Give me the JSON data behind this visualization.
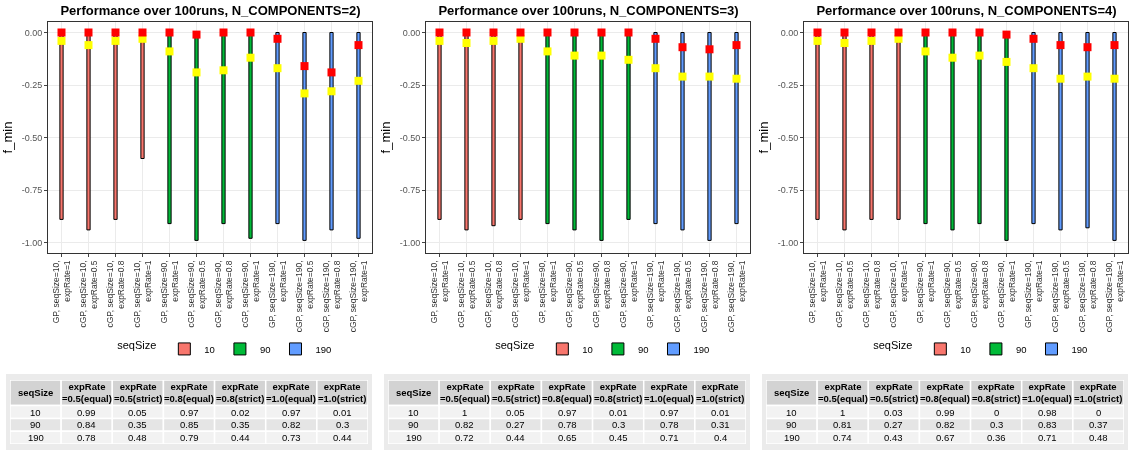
{
  "chart_data": [
    {
      "type": "bar",
      "title": "Performance over 100runs, N_COMPONENTS=2)",
      "ylabel": "f_min",
      "legend_title": "seqSize",
      "legend": "bottom",
      "grid": true,
      "ylim": [
        -1.05,
        0.05
      ],
      "yticks": [
        {
          "value": 0,
          "label": "0.00"
        },
        {
          "value": -0.25,
          "label": "-0.25"
        },
        {
          "value": -0.5,
          "label": "-0.50"
        },
        {
          "value": -0.75,
          "label": "-0.75"
        },
        {
          "value": -1,
          "label": "-1.00"
        }
      ],
      "categories": [
        "GP, seqSize=10, expRate=1",
        "cGP, seqSize=10, expRate=0.5",
        "cGP, seqSize=10, expRate=0.8",
        "cGP, seqSize=10, expRate=1",
        "GP, seqSize=90, expRate=1",
        "cGP, seqSize=90, expRate=0.5",
        "cGP, seqSize=90, expRate=0.8",
        "cGP, seqSize=90, expRate=1",
        "GP, seqSize=190, expRate=1",
        "cGP, seqSize=190, expRate=0.5",
        "cGP, seqSize=190, expRate=0.8",
        "cGP, seqSize=190, expRate=1"
      ],
      "series": [
        {
          "name": "10",
          "type": "bar",
          "color": "#f8766d",
          "values": [
            -0.89,
            -0.94,
            -0.89,
            -0.6,
            null,
            null,
            null,
            null,
            null,
            null,
            null,
            null
          ]
        },
        {
          "name": "90",
          "type": "bar",
          "color": "#00ba38",
          "values": [
            null,
            null,
            null,
            null,
            -0.91,
            -0.99,
            -0.91,
            -0.98,
            null,
            null,
            null,
            null
          ]
        },
        {
          "name": "190",
          "type": "bar",
          "color": "#619cff",
          "values": [
            null,
            null,
            null,
            null,
            null,
            null,
            null,
            null,
            -0.91,
            -0.99,
            -0.94,
            -0.98
          ]
        },
        {
          "type": "scatter",
          "marker": "square",
          "color": "#ffff00",
          "values": [
            -0.04,
            -0.06,
            -0.04,
            -0.03,
            -0.09,
            -0.19,
            -0.18,
            -0.12,
            -0.17,
            -0.29,
            -0.28,
            -0.23
          ]
        },
        {
          "type": "scatter",
          "marker": "square",
          "color": "#ff0000",
          "values": [
            0,
            0,
            0,
            0,
            0,
            -0.01,
            0,
            0,
            -0.03,
            -0.16,
            -0.19,
            -0.06
          ]
        }
      ]
    },
    {
      "type": "bar",
      "title": "Performance over 100runs, N_COMPONENTS=3)",
      "ylabel": "f_min",
      "legend_title": "seqSize",
      "legend": "bottom",
      "grid": true,
      "ylim": [
        -1.05,
        0.05
      ],
      "yticks": [
        {
          "value": 0,
          "label": "0.00"
        },
        {
          "value": -0.25,
          "label": "-0.25"
        },
        {
          "value": -0.5,
          "label": "-0.50"
        },
        {
          "value": -0.75,
          "label": "-0.75"
        },
        {
          "value": -1,
          "label": "-1.00"
        }
      ],
      "categories": [
        "GP, seqSize=10, expRate=1",
        "cGP, seqSize=10, expRate=0.5",
        "cGP, seqSize=10, expRate=0.8",
        "cGP, seqSize=10, expRate=1",
        "GP, seqSize=90, expRate=1",
        "cGP, seqSize=90, expRate=0.5",
        "cGP, seqSize=90, expRate=0.8",
        "cGP, seqSize=90, expRate=1",
        "GP, seqSize=190, expRate=1",
        "cGP, seqSize=190, expRate=0.5",
        "cGP, seqSize=190, expRate=0.8",
        "cGP, seqSize=190, expRate=1"
      ],
      "series": [
        {
          "name": "10",
          "type": "bar",
          "color": "#f8766d",
          "values": [
            -0.89,
            -0.94,
            -0.92,
            -0.89,
            null,
            null,
            null,
            null,
            null,
            null,
            null,
            null
          ]
        },
        {
          "name": "90",
          "type": "bar",
          "color": "#00ba38",
          "values": [
            null,
            null,
            null,
            null,
            -0.91,
            -0.94,
            -0.99,
            -0.89,
            null,
            null,
            null,
            null
          ]
        },
        {
          "name": "190",
          "type": "bar",
          "color": "#619cff",
          "values": [
            null,
            null,
            null,
            null,
            null,
            null,
            null,
            null,
            -0.91,
            -0.94,
            -0.99,
            -0.91
          ]
        },
        {
          "type": "scatter",
          "marker": "square",
          "color": "#ffff00",
          "values": [
            -0.04,
            -0.05,
            -0.04,
            -0.03,
            -0.09,
            -0.11,
            -0.11,
            -0.13,
            -0.17,
            -0.21,
            -0.21,
            -0.22
          ]
        },
        {
          "type": "scatter",
          "marker": "square",
          "color": "#ff0000",
          "values": [
            0,
            0,
            0,
            0,
            0,
            0,
            0,
            0,
            -0.03,
            -0.07,
            -0.08,
            -0.06
          ]
        }
      ]
    },
    {
      "type": "bar",
      "title": "Performance over 100runs, N_COMPONENTS=4)",
      "ylabel": "f_min",
      "legend_title": "seqSize",
      "legend": "bottom",
      "grid": true,
      "ylim": [
        -1.05,
        0.05
      ],
      "yticks": [
        {
          "value": 0,
          "label": "0.00"
        },
        {
          "value": -0.25,
          "label": "-0.25"
        },
        {
          "value": -0.5,
          "label": "-0.50"
        },
        {
          "value": -0.75,
          "label": "-0.75"
        },
        {
          "value": -1,
          "label": "-1.00"
        }
      ],
      "categories": [
        "GP, seqSize=10, expRate=1",
        "cGP, seqSize=10, expRate=0.5",
        "cGP, seqSize=10, expRate=0.8",
        "cGP, seqSize=10, expRate=1",
        "GP, seqSize=90, expRate=1",
        "cGP, seqSize=90, expRate=0.5",
        "cGP, seqSize=90, expRate=0.8",
        "cGP, seqSize=90, expRate=1",
        "GP, seqSize=190, expRate=1",
        "cGP, seqSize=190, expRate=0.5",
        "cGP, seqSize=190, expRate=0.8",
        "cGP, seqSize=190, expRate=1"
      ],
      "series": [
        {
          "name": "10",
          "type": "bar",
          "color": "#f8766d",
          "values": [
            -0.89,
            -0.94,
            -0.89,
            -0.89,
            null,
            null,
            null,
            null,
            null,
            null,
            null,
            null
          ]
        },
        {
          "name": "90",
          "type": "bar",
          "color": "#00ba38",
          "values": [
            null,
            null,
            null,
            null,
            -0.91,
            -0.94,
            -0.91,
            -0.99,
            null,
            null,
            null,
            null
          ]
        },
        {
          "name": "190",
          "type": "bar",
          "color": "#619cff",
          "values": [
            null,
            null,
            null,
            null,
            null,
            null,
            null,
            null,
            -0.91,
            -0.94,
            -0.93,
            -0.99
          ]
        },
        {
          "type": "scatter",
          "marker": "square",
          "color": "#ffff00",
          "values": [
            -0.04,
            -0.05,
            -0.04,
            -0.03,
            -0.09,
            -0.12,
            -0.11,
            -0.14,
            -0.17,
            -0.22,
            -0.21,
            -0.22
          ]
        },
        {
          "type": "scatter",
          "marker": "square",
          "color": "#ff0000",
          "values": [
            0,
            0,
            0,
            0,
            0,
            0,
            0,
            -0.01,
            -0.03,
            -0.06,
            -0.07,
            -0.06
          ]
        }
      ]
    },
    {
      "type": "heatmap",
      "ylabel": "seqSize",
      "data_labels": true,
      "categories": [
        "expRate =0.5(equal)",
        "expRate =0.5(strict)",
        "expRate =0.8(equal)",
        "expRate =0.8(strict)",
        "expRate =1.0(equal)",
        "expRate =1.0(strict)"
      ],
      "y_categories": [
        "10",
        "90",
        "190"
      ],
      "cells": [
        [
          0.99,
          0.05,
          0.97,
          0.02,
          0.97,
          0.01
        ],
        [
          0.84,
          0.35,
          0.85,
          0.35,
          0.82,
          0.3
        ],
        [
          0.78,
          0.48,
          0.79,
          0.44,
          0.73,
          0.44
        ]
      ]
    },
    {
      "type": "heatmap",
      "ylabel": "seqSize",
      "data_labels": true,
      "categories": [
        "expRate =0.5(equal)",
        "expRate =0.5(strict)",
        "expRate =0.8(equal)",
        "expRate =0.8(strict)",
        "expRate =1.0(equal)",
        "expRate =1.0(strict)"
      ],
      "y_categories": [
        "10",
        "90",
        "190"
      ],
      "cells": [
        [
          1,
          0.05,
          0.97,
          0.01,
          0.97,
          0.01
        ],
        [
          0.82,
          0.27,
          0.78,
          0.3,
          0.78,
          0.31
        ],
        [
          0.72,
          0.44,
          0.65,
          0.45,
          0.71,
          0.4
        ]
      ]
    },
    {
      "type": "heatmap",
      "ylabel": "seqSize",
      "data_labels": true,
      "categories": [
        "expRate =0.5(equal)",
        "expRate =0.5(strict)",
        "expRate =0.8(equal)",
        "expRate =0.8(strict)",
        "expRate =1.0(equal)",
        "expRate =1.0(strict)"
      ],
      "y_categories": [
        "10",
        "90",
        "190"
      ],
      "cells": [
        [
          1,
          0.03,
          0.99,
          0,
          0.98,
          0
        ],
        [
          0.81,
          0.27,
          0.82,
          0.3,
          0.83,
          0.37
        ],
        [
          0.74,
          0.43,
          0.67,
          0.36,
          0.71,
          0.48
        ]
      ]
    }
  ]
}
